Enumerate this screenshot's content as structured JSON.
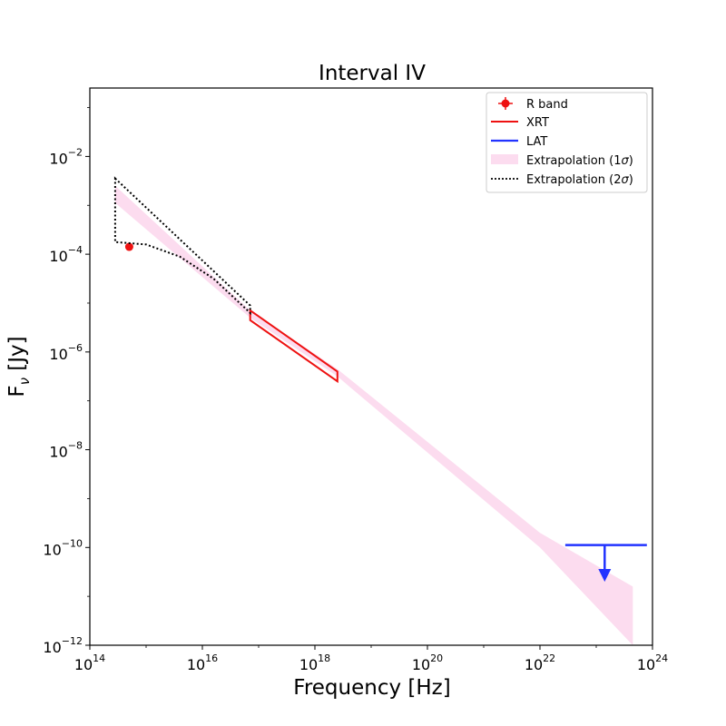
{
  "chart_data": {
    "type": "line",
    "title": "Interval IV",
    "xlabel": "Frequency [Hz]",
    "ylabel_main": "F",
    "ylabel_sub": "ν",
    "ylabel_unit": " [Jy]",
    "xscale": "log",
    "yscale": "log",
    "xlim_exp": [
      14,
      24
    ],
    "ylim_exp": [
      -12,
      -0.6
    ],
    "x_ticks": [
      {
        "base": "10",
        "exp": "14",
        "value": 14
      },
      {
        "base": "10",
        "exp": "16",
        "value": 16
      },
      {
        "base": "10",
        "exp": "18",
        "value": 18
      },
      {
        "base": "10",
        "exp": "20",
        "value": 20
      },
      {
        "base": "10",
        "exp": "22",
        "value": 22
      },
      {
        "base": "10",
        "exp": "24",
        "value": 24
      }
    ],
    "y_ticks": [
      {
        "base": "10",
        "exp": "−12",
        "value": -12
      },
      {
        "base": "10",
        "exp": "−10",
        "value": -10
      },
      {
        "base": "10",
        "exp": "−8",
        "value": -8
      },
      {
        "base": "10",
        "exp": "−6",
        "value": -6
      },
      {
        "base": "10",
        "exp": "−4",
        "value": -4
      },
      {
        "base": "10",
        "exp": "−2",
        "value": -2
      }
    ],
    "colors": {
      "r_band": "#ee1111",
      "xrt": "#ee1111",
      "lat": "#2233ff",
      "band_1sigma": "#fcdcef",
      "band_2sigma": "#000000"
    },
    "series": [
      {
        "name": "R band",
        "kind": "point",
        "points": [
          {
            "log_x": 14.7,
            "log_y": -3.85
          }
        ]
      },
      {
        "name": "XRT",
        "kind": "bowtie",
        "log_x": [
          16.85,
          18.4
        ],
        "upper_log_y": [
          -5.15,
          -6.4
        ],
        "lower_log_y": [
          -5.35,
          -6.6
        ]
      },
      {
        "name": "LAT",
        "kind": "upper_limit",
        "log_x_range": [
          22.45,
          23.9
        ],
        "log_y": -9.95,
        "arrow_log_x": 23.15,
        "arrow_log_y_end": -10.7
      },
      {
        "name": "Extrapolation (1σ)",
        "kind": "band",
        "upper": [
          [
            14.45,
            -2.6
          ],
          [
            16.85,
            -5.15
          ],
          [
            18.4,
            -6.35
          ],
          [
            22.0,
            -9.7
          ],
          [
            23.65,
            -10.8
          ]
        ],
        "lower": [
          [
            14.45,
            -2.95
          ],
          [
            16.85,
            -5.3
          ],
          [
            18.4,
            -6.5
          ],
          [
            22.0,
            -10.0
          ],
          [
            23.65,
            -12.0
          ]
        ]
      },
      {
        "name": "Extrapolation (2σ)",
        "kind": "dotted_bowtie",
        "upper": [
          [
            14.45,
            -2.45
          ],
          [
            16.85,
            -5.05
          ]
        ],
        "lower": [
          [
            14.45,
            -3.75
          ],
          [
            15.0,
            -3.8
          ],
          [
            15.6,
            -4.05
          ],
          [
            16.2,
            -4.5
          ],
          [
            16.85,
            -5.2
          ]
        ]
      }
    ],
    "legend": {
      "position": "top-right",
      "entries": [
        {
          "label_text": "R band",
          "label_sub": "",
          "label_end": ""
        },
        {
          "label_text": "XRT",
          "label_sub": "",
          "label_end": ""
        },
        {
          "label_text": "LAT",
          "label_sub": "",
          "label_end": ""
        },
        {
          "label_text": "Extrapolation (1",
          "label_sub": "σ",
          "label_end": ")"
        },
        {
          "label_text": "Extrapolation (2",
          "label_sub": "σ",
          "label_end": ")"
        }
      ]
    }
  }
}
